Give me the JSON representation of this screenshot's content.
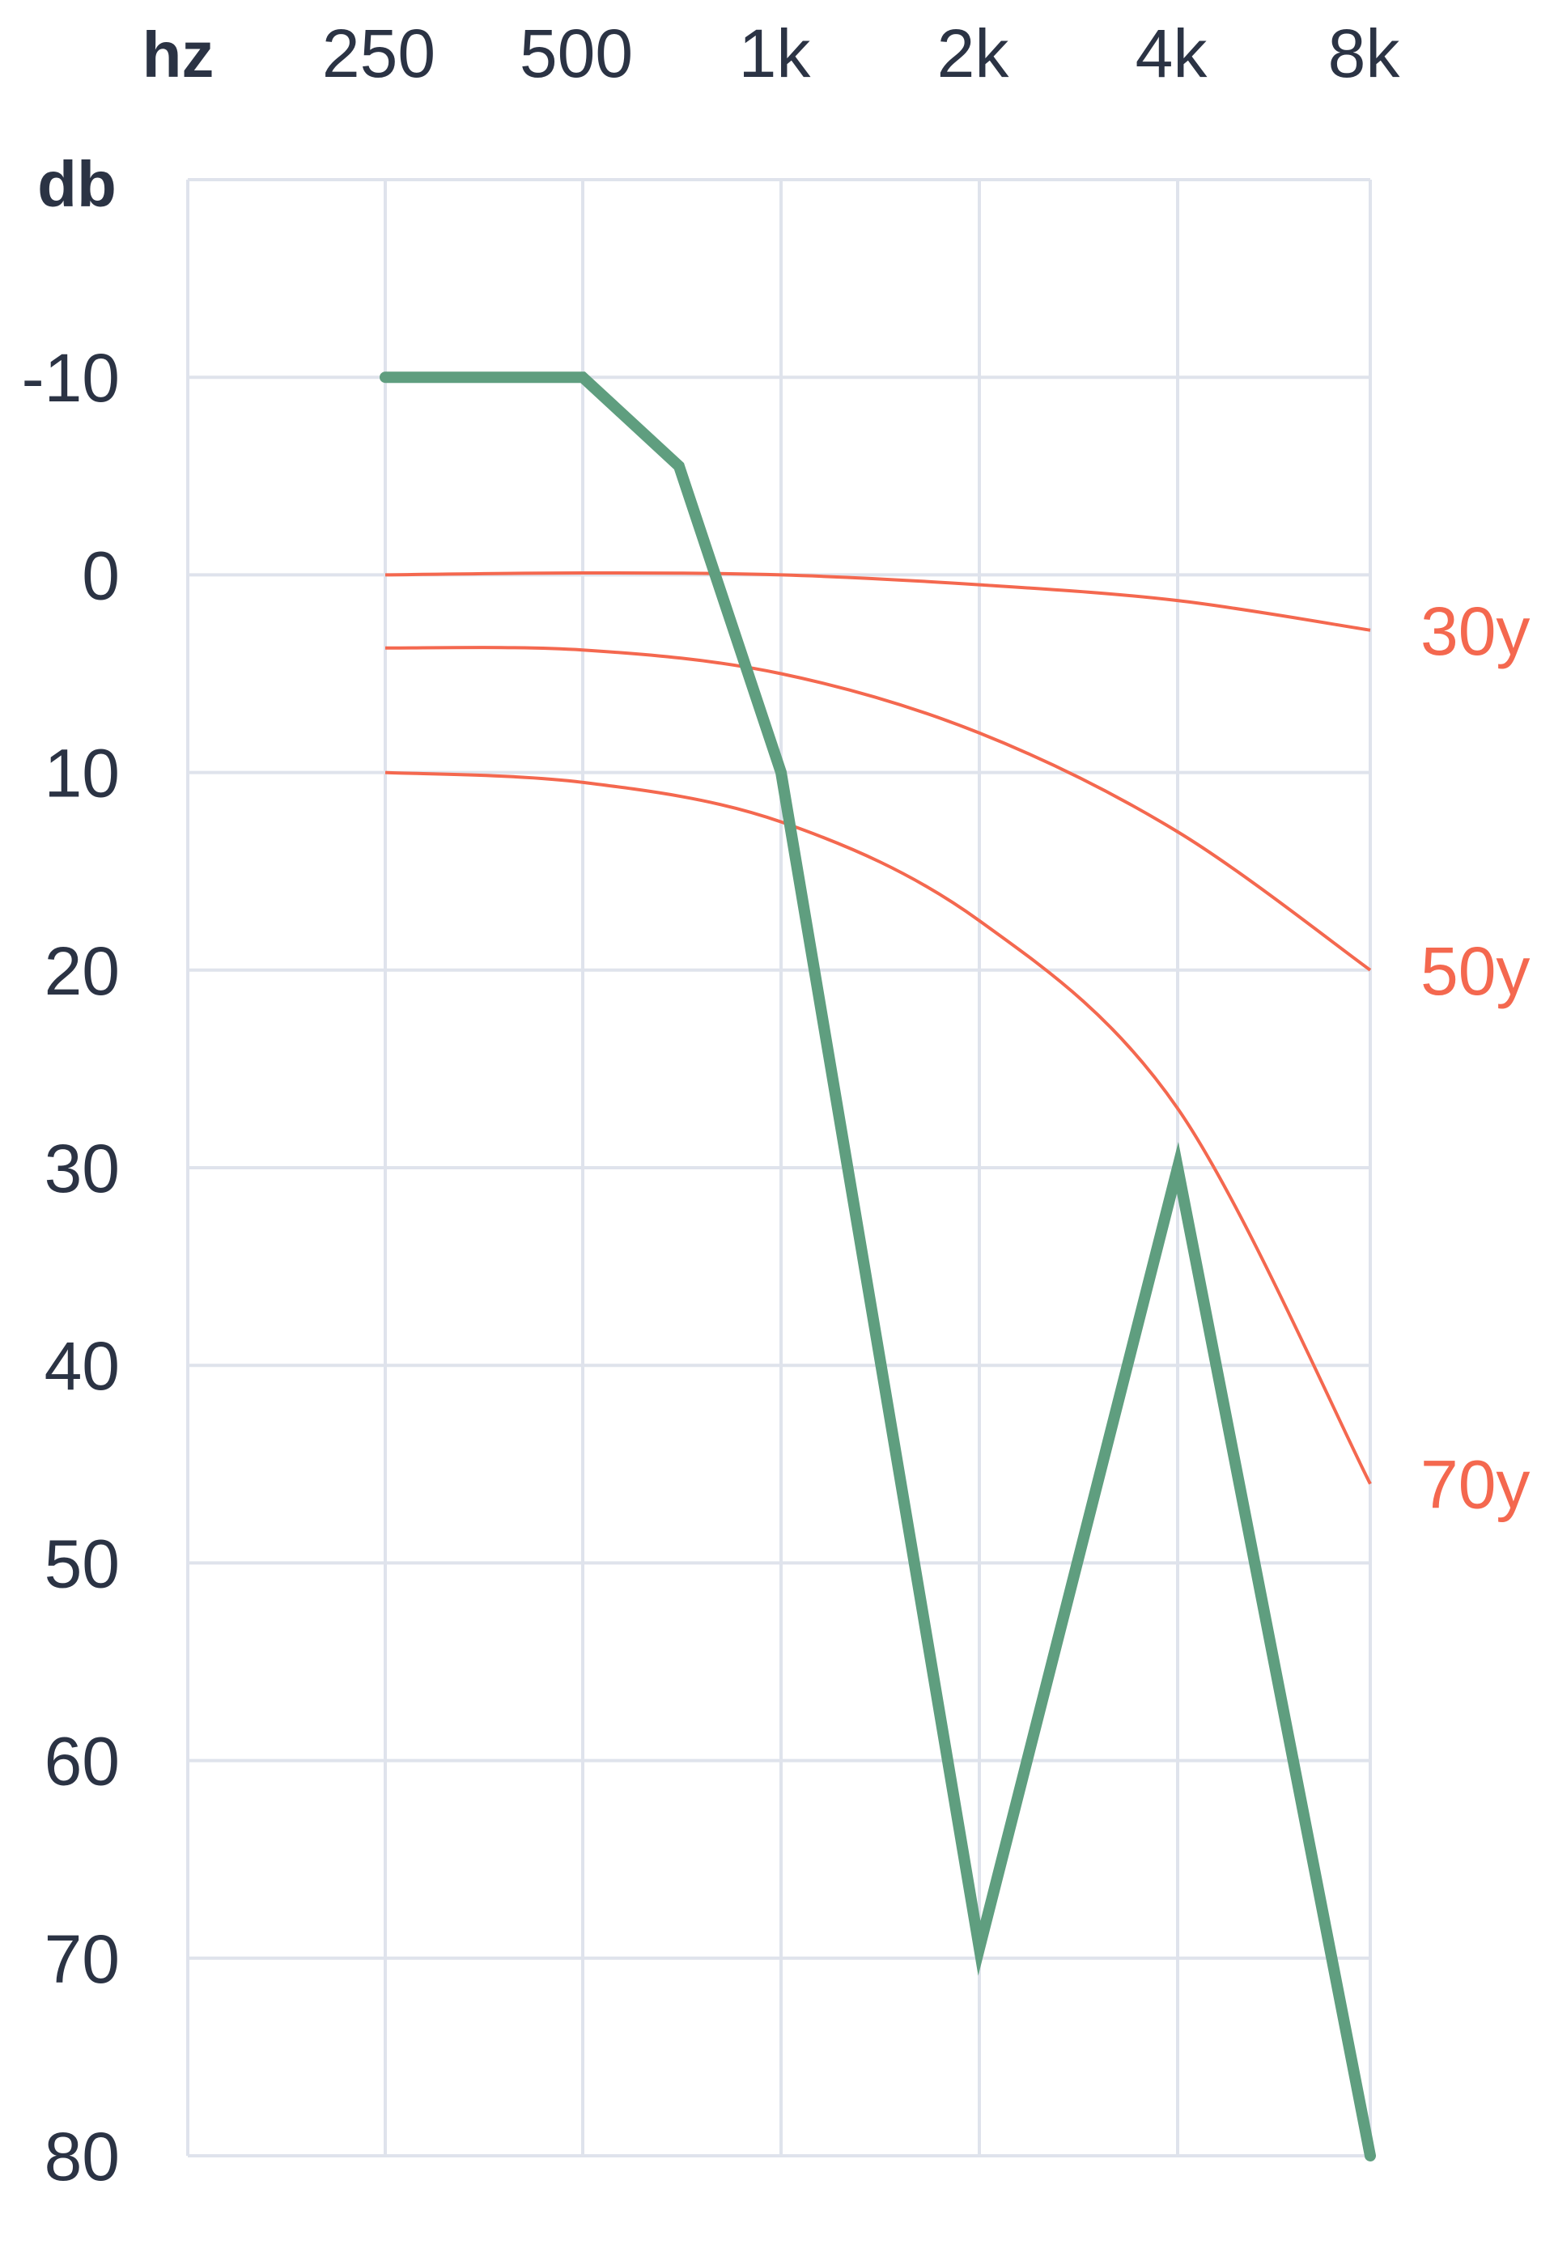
{
  "chart_data": {
    "type": "line",
    "x_unit_label": "hz",
    "y_unit_label": "db",
    "x_categories": [
      "250",
      "500",
      "1k",
      "2k",
      "4k",
      "8k"
    ],
    "y_ticks": [
      -10,
      0,
      10,
      20,
      30,
      40,
      50,
      60,
      70,
      80
    ],
    "y_tick_labels": [
      "-10",
      "0",
      "10",
      "20",
      "30",
      "40",
      "50",
      "60",
      "70",
      "80"
    ],
    "ylim": [
      -20,
      80
    ],
    "y_inverted": true,
    "grid": true,
    "colors": {
      "grid": "#dfe3ec",
      "measured": "#5f9e7f",
      "reference": "#f4684f",
      "text": "#2b3344"
    },
    "measured_series": {
      "x": [
        "250",
        "500",
        "~700",
        "1k",
        "2k",
        "4k",
        "8k"
      ],
      "y": [
        -10,
        -10,
        -5.5,
        10,
        69.5,
        30,
        80
      ]
    },
    "reference_series": [
      {
        "name": "30y",
        "x": [
          "250",
          "500",
          "1k",
          "2k",
          "4k",
          "8k"
        ],
        "y": [
          0,
          -0.1,
          0,
          0.5,
          1.3,
          2.8
        ]
      },
      {
        "name": "50y",
        "x": [
          "250",
          "500",
          "1k",
          "2k",
          "4k",
          "8k"
        ],
        "y": [
          3.7,
          3.8,
          5.0,
          8.0,
          13.0,
          20.0
        ]
      },
      {
        "name": "70y",
        "x": [
          "250",
          "500",
          "1k",
          "2k",
          "4k",
          "8k"
        ],
        "y": [
          10.0,
          10.5,
          12.5,
          17.5,
          27.0,
          46.0
        ]
      }
    ]
  }
}
